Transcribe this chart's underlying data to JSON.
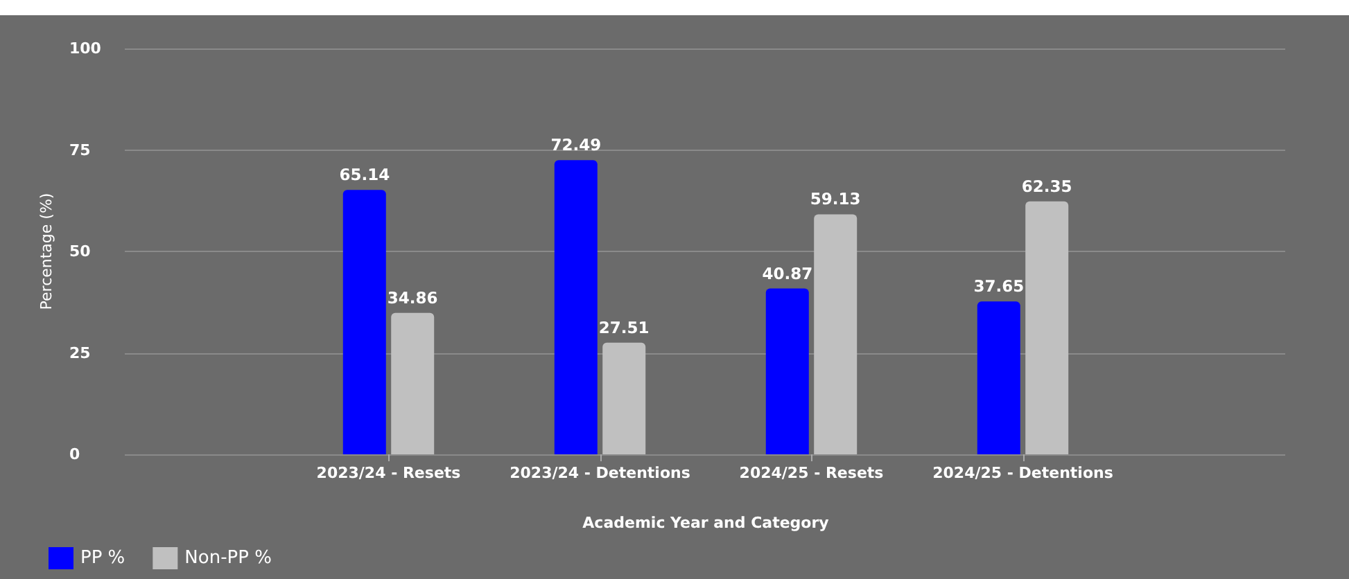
{
  "chart_data": {
    "type": "bar",
    "xlabel": "Academic Year and Category",
    "ylabel": "Percentage (%)",
    "categories": [
      "2023/24 - Resets",
      "2023/24 - Detentions",
      "2024/25 - Resets",
      "2024/25 - Detentions"
    ],
    "series": [
      {
        "name": "PP %",
        "color": "#0000ff",
        "values": [
          65.14,
          72.49,
          40.87,
          37.65
        ]
      },
      {
        "name": "Non-PP %",
        "color": "#c0c0c0",
        "values": [
          34.86,
          27.51,
          59.13,
          62.35
        ]
      }
    ],
    "ylim": [
      0,
      100
    ],
    "yticks": [
      0,
      25,
      50,
      75,
      100
    ],
    "grid": "y",
    "legend": "bottom left",
    "data_labels": true
  }
}
